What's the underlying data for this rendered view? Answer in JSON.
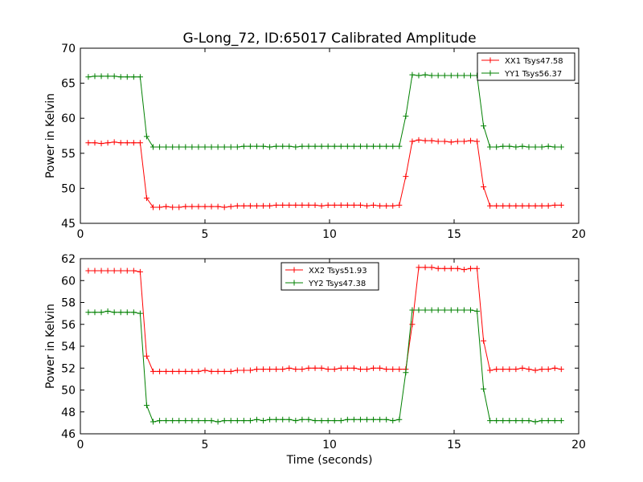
{
  "title": "G-Long_72, ID:65017 Calibrated Amplitude",
  "chart_data": [
    {
      "type": "line",
      "ylabel": "Power in Kelvin",
      "xlabel": "",
      "xlim": [
        0,
        20
      ],
      "ylim": [
        45,
        70
      ],
      "xticks": [
        0,
        5,
        10,
        15,
        20
      ],
      "yticks": [
        45,
        50,
        55,
        60,
        65,
        70
      ],
      "grid": false,
      "legend_position": "top-right",
      "x": [
        0.32,
        0.58,
        0.84,
        1.1,
        1.36,
        1.62,
        1.88,
        2.14,
        2.4,
        2.66,
        2.92,
        3.18,
        3.44,
        3.7,
        3.96,
        4.22,
        4.48,
        4.74,
        5.0,
        5.26,
        5.52,
        5.78,
        6.04,
        6.3,
        6.56,
        6.82,
        7.08,
        7.34,
        7.6,
        7.86,
        8.12,
        8.38,
        8.64,
        8.9,
        9.16,
        9.42,
        9.68,
        9.94,
        10.2,
        10.46,
        10.72,
        10.98,
        11.24,
        11.5,
        11.76,
        12.02,
        12.28,
        12.54,
        12.8,
        13.06,
        13.32,
        13.58,
        13.84,
        14.1,
        14.36,
        14.62,
        14.88,
        15.14,
        15.4,
        15.66,
        15.92,
        16.18,
        16.44,
        16.7,
        16.96,
        17.22,
        17.48,
        17.74,
        18.0,
        18.26,
        18.52,
        18.78,
        19.04,
        19.3
      ],
      "series": [
        {
          "name": "XX1 Tsys47.58",
          "color": "#ff0000",
          "values": [
            56.5,
            56.5,
            56.4,
            56.5,
            56.6,
            56.5,
            56.5,
            56.5,
            56.5,
            48.6,
            47.3,
            47.3,
            47.4,
            47.3,
            47.3,
            47.4,
            47.4,
            47.4,
            47.4,
            47.4,
            47.4,
            47.3,
            47.4,
            47.5,
            47.5,
            47.5,
            47.5,
            47.5,
            47.5,
            47.6,
            47.6,
            47.6,
            47.6,
            47.6,
            47.6,
            47.6,
            47.5,
            47.6,
            47.6,
            47.6,
            47.6,
            47.6,
            47.6,
            47.5,
            47.6,
            47.5,
            47.5,
            47.5,
            47.6,
            51.7,
            56.7,
            56.9,
            56.8,
            56.8,
            56.7,
            56.7,
            56.6,
            56.7,
            56.7,
            56.8,
            56.7,
            50.2,
            47.5,
            47.5,
            47.5,
            47.5,
            47.5,
            47.5,
            47.5,
            47.5,
            47.5,
            47.5,
            47.6,
            47.6
          ]
        },
        {
          "name": "YY1 Tsys56.37",
          "color": "#008000",
          "values": [
            65.9,
            66.0,
            66.0,
            66.0,
            66.0,
            65.9,
            65.9,
            65.9,
            65.9,
            57.4,
            55.9,
            55.9,
            55.9,
            55.9,
            55.9,
            55.9,
            55.9,
            55.9,
            55.9,
            55.9,
            55.9,
            55.9,
            55.9,
            55.9,
            56.0,
            56.0,
            56.0,
            56.0,
            55.9,
            56.0,
            56.0,
            56.0,
            55.9,
            56.0,
            56.0,
            56.0,
            56.0,
            56.0,
            56.0,
            56.0,
            56.0,
            56.0,
            56.0,
            56.0,
            56.0,
            56.0,
            56.0,
            56.0,
            56.0,
            60.3,
            66.2,
            66.1,
            66.2,
            66.1,
            66.1,
            66.1,
            66.1,
            66.1,
            66.1,
            66.1,
            66.1,
            58.9,
            55.9,
            55.9,
            56.0,
            56.0,
            55.9,
            56.0,
            55.9,
            55.9,
            55.9,
            56.0,
            55.9,
            55.9
          ]
        }
      ]
    },
    {
      "type": "line",
      "ylabel": "Power in Kelvin",
      "xlabel": "Time (seconds)",
      "xlim": [
        0,
        20
      ],
      "ylim": [
        46,
        62
      ],
      "xticks": [
        0,
        5,
        10,
        15,
        20
      ],
      "yticks": [
        46,
        48,
        50,
        52,
        54,
        56,
        58,
        60,
        62
      ],
      "grid": false,
      "legend_position": "top-center",
      "x": [
        0.32,
        0.58,
        0.84,
        1.1,
        1.36,
        1.62,
        1.88,
        2.14,
        2.4,
        2.66,
        2.92,
        3.18,
        3.44,
        3.7,
        3.96,
        4.22,
        4.48,
        4.74,
        5.0,
        5.26,
        5.52,
        5.78,
        6.04,
        6.3,
        6.56,
        6.82,
        7.08,
        7.34,
        7.6,
        7.86,
        8.12,
        8.38,
        8.64,
        8.9,
        9.16,
        9.42,
        9.68,
        9.94,
        10.2,
        10.46,
        10.72,
        10.98,
        11.24,
        11.5,
        11.76,
        12.02,
        12.28,
        12.54,
        12.8,
        13.06,
        13.32,
        13.58,
        13.84,
        14.1,
        14.36,
        14.62,
        14.88,
        15.14,
        15.4,
        15.66,
        15.92,
        16.18,
        16.44,
        16.7,
        16.96,
        17.22,
        17.48,
        17.74,
        18.0,
        18.26,
        18.52,
        18.78,
        19.04,
        19.3
      ],
      "series": [
        {
          "name": "XX2 Tsys51.93",
          "color": "#ff0000",
          "values": [
            60.9,
            60.9,
            60.9,
            60.9,
            60.9,
            60.9,
            60.9,
            60.9,
            60.8,
            53.1,
            51.7,
            51.7,
            51.7,
            51.7,
            51.7,
            51.7,
            51.7,
            51.7,
            51.8,
            51.7,
            51.7,
            51.7,
            51.7,
            51.8,
            51.8,
            51.8,
            51.9,
            51.9,
            51.9,
            51.9,
            51.9,
            52.0,
            51.9,
            51.9,
            52.0,
            52.0,
            52.0,
            51.9,
            51.9,
            52.0,
            52.0,
            52.0,
            51.9,
            51.9,
            52.0,
            52.0,
            51.9,
            51.9,
            51.9,
            51.9,
            56.0,
            61.2,
            61.2,
            61.2,
            61.1,
            61.1,
            61.1,
            61.1,
            61.0,
            61.1,
            61.1,
            54.5,
            51.8,
            51.9,
            51.9,
            51.9,
            51.9,
            52.0,
            51.9,
            51.8,
            51.9,
            51.9,
            52.0,
            51.9
          ]
        },
        {
          "name": "YY2 Tsys47.38",
          "color": "#008000",
          "values": [
            57.1,
            57.1,
            57.1,
            57.2,
            57.1,
            57.1,
            57.1,
            57.1,
            57.0,
            48.6,
            47.1,
            47.2,
            47.2,
            47.2,
            47.2,
            47.2,
            47.2,
            47.2,
            47.2,
            47.2,
            47.1,
            47.2,
            47.2,
            47.2,
            47.2,
            47.2,
            47.3,
            47.2,
            47.3,
            47.3,
            47.3,
            47.3,
            47.2,
            47.3,
            47.3,
            47.2,
            47.2,
            47.2,
            47.2,
            47.2,
            47.3,
            47.3,
            47.3,
            47.3,
            47.3,
            47.3,
            47.3,
            47.2,
            47.3,
            51.6,
            57.3,
            57.3,
            57.3,
            57.3,
            57.3,
            57.3,
            57.3,
            57.3,
            57.3,
            57.3,
            57.2,
            50.1,
            47.2,
            47.2,
            47.2,
            47.2,
            47.2,
            47.2,
            47.2,
            47.1,
            47.2,
            47.2,
            47.2,
            47.2
          ]
        }
      ]
    }
  ]
}
